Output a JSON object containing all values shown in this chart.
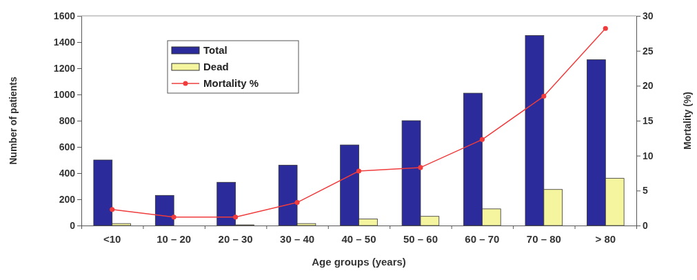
{
  "chart_data": {
    "type": "bar",
    "xlabel": "Age groups (years)",
    "ylabel": "Number of patients",
    "y2label": "Mortality (%)",
    "categories": [
      "<10",
      "10 – 20",
      "20 – 30",
      "30 – 40",
      "40 – 50",
      "50 – 60",
      "60 – 70",
      "70 – 80",
      "> 80"
    ],
    "series": [
      {
        "name": "Total",
        "color": "#2b2b9c",
        "values": [
          500,
          230,
          330,
          460,
          615,
          800,
          1010,
          1450,
          1265
        ]
      },
      {
        "name": "Dead",
        "color": "#f5f5a0",
        "values": [
          15,
          null,
          5,
          15,
          50,
          70,
          127,
          275,
          360
        ]
      },
      {
        "name": "Mortality %",
        "type": "line",
        "axis": "y2",
        "color": "#f03c3c",
        "marker": "circle",
        "values": [
          2.3,
          1.2,
          1.2,
          3.3,
          7.8,
          8.3,
          12.3,
          18.5,
          28.2
        ]
      }
    ],
    "ylim": [
      0,
      1600
    ],
    "yticks": [
      0,
      200,
      400,
      600,
      800,
      1000,
      1200,
      1400,
      1600
    ],
    "y2lim": [
      0,
      30
    ],
    "y2ticks": [
      0,
      5,
      10,
      15,
      20,
      25,
      30
    ],
    "legend": "top left",
    "grid": false
  }
}
